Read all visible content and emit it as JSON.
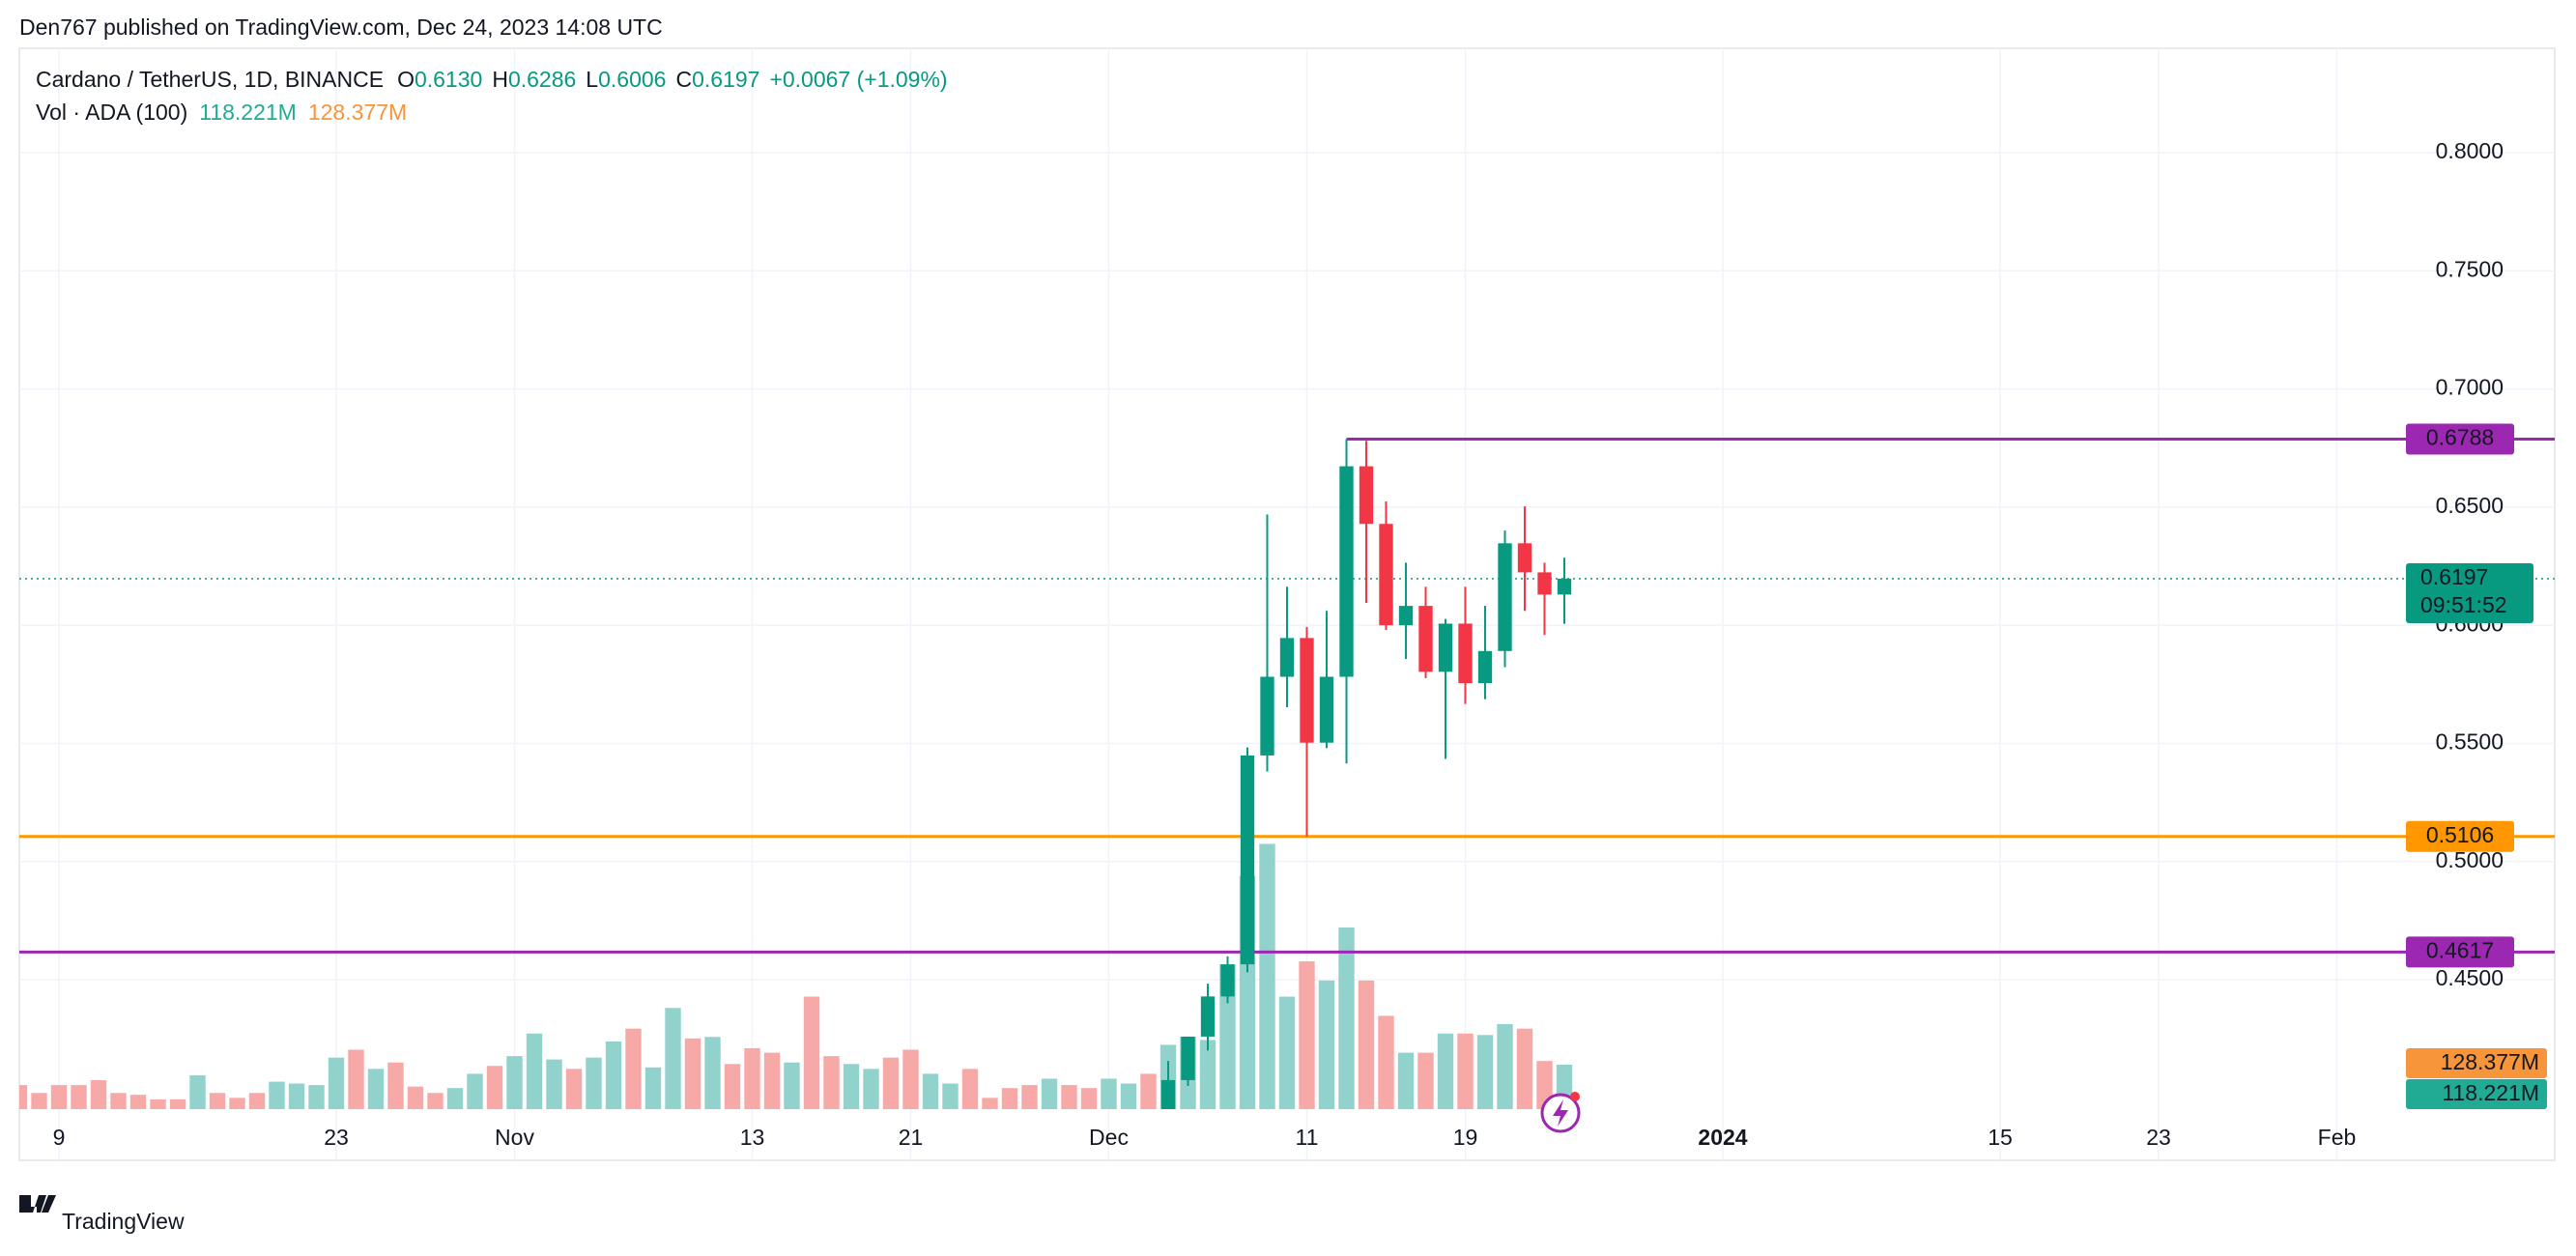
{
  "header": {
    "publisher": "Den767 published on TradingView.com, Dec 24, 2023 14:08 UTC"
  },
  "footer": {
    "brand": "TradingView"
  },
  "chart_data": {
    "type": "candlestick",
    "legend": {
      "symbol": "Cardano / TetherUS, 1D, BINANCE",
      "ohlc": [
        {
          "key": "O",
          "value": "0.6130"
        },
        {
          "key": "H",
          "value": "0.6286"
        },
        {
          "key": "L",
          "value": "0.6006"
        },
        {
          "key": "C",
          "value": "0.6197"
        }
      ],
      "change": "+0.0067 (+1.09%)"
    },
    "volume_legend": {
      "name": "Vol · ADA (100)",
      "volume": "118.221M",
      "ma": "128.377M"
    },
    "up_color": "#089981",
    "down_color": "#f23645",
    "x": [
      "2023-12-04",
      "2023-12-05",
      "2023-12-06",
      "2023-12-07",
      "2023-12-08",
      "2023-12-09",
      "2023-12-10",
      "2023-12-11",
      "2023-12-12",
      "2023-12-13",
      "2023-12-14",
      "2023-12-15",
      "2023-12-16",
      "2023-12-17",
      "2023-12-18",
      "2023-12-19",
      "2023-12-20",
      "2023-12-21",
      "2023-12-22",
      "2023-12-23",
      "2023-12-24"
    ],
    "open": [
      0.39,
      0.4075,
      0.4259,
      0.4429,
      0.4565,
      0.5449,
      0.5782,
      0.5946,
      0.5503,
      0.5782,
      0.6673,
      0.6429,
      0.6,
      0.6082,
      0.5803,
      0.6007,
      0.5755,
      0.5891,
      0.6347,
      0.6224,
      0.613
    ],
    "high": [
      0.4156,
      0.4259,
      0.4483,
      0.4599,
      0.5483,
      0.6469,
      0.6163,
      0.5993,
      0.6061,
      0.6788,
      0.678,
      0.6524,
      0.6265,
      0.6163,
      0.6027,
      0.6163,
      0.6082,
      0.6401,
      0.6503,
      0.6265,
      0.6286
    ],
    "low": [
      0.385,
      0.405,
      0.42,
      0.44,
      0.4531,
      0.5381,
      0.5653,
      0.5106,
      0.548,
      0.5415,
      0.6095,
      0.598,
      0.5857,
      0.5776,
      0.5435,
      0.5667,
      0.5687,
      0.5823,
      0.6061,
      0.5959,
      0.6006
    ],
    "close": [
      0.4075,
      0.4259,
      0.4429,
      0.4565,
      0.5449,
      0.5782,
      0.5946,
      0.5503,
      0.5782,
      0.6673,
      0.6429,
      0.6,
      0.6082,
      0.5803,
      0.6007,
      0.5755,
      0.5891,
      0.6347,
      0.6224,
      0.613,
      0.6197
    ],
    "xlim": [
      "2023-10-07",
      "2024-02-12"
    ],
    "xticks": [
      {
        "value": "2023-10-09",
        "label": "9"
      },
      {
        "value": "2023-10-23",
        "label": "23"
      },
      {
        "value": "2023-11-01",
        "label": "Nov"
      },
      {
        "value": "2023-11-13",
        "label": "13"
      },
      {
        "value": "2023-11-21",
        "label": "21"
      },
      {
        "value": "2023-12-01",
        "label": "Dec"
      },
      {
        "value": "2023-12-11",
        "label": "11"
      },
      {
        "value": "2023-12-19",
        "label": "19"
      },
      {
        "value": "2024-01-01",
        "label": "2024"
      },
      {
        "value": "2024-01-15",
        "label": "15"
      },
      {
        "value": "2024-01-23",
        "label": "23"
      },
      {
        "value": "2024-02-01",
        "label": "Feb"
      }
    ],
    "ylim": [
      0.3952,
      0.8442
    ],
    "yticks": [
      {
        "value": 0.45,
        "label": "0.4500"
      },
      {
        "value": 0.5,
        "label": "0.5000"
      },
      {
        "value": 0.55,
        "label": "0.5500"
      },
      {
        "value": 0.6,
        "label": "0.6000"
      },
      {
        "value": 0.65,
        "label": "0.6500"
      },
      {
        "value": 0.7,
        "label": "0.7000"
      },
      {
        "value": 0.75,
        "label": "0.7500"
      },
      {
        "value": 0.8,
        "label": "0.8000"
      }
    ],
    "grid": true,
    "hlines": [
      {
        "value": 0.6788,
        "color": "#9c27b0",
        "from": "2023-12-13"
      },
      {
        "value": 0.5106,
        "color": "#ff9800"
      },
      {
        "value": 0.4617,
        "color": "#9c27b0"
      }
    ],
    "price_line": {
      "value": 0.6197,
      "color": "#089981",
      "countdown": "09:51:52"
    },
    "volume": {
      "up_color": "#92d2cc",
      "down_color": "#f7a9a7",
      "ylim": [
        0,
        2820
      ],
      "x": [
        "2023-10-07",
        "2023-10-08",
        "2023-10-09",
        "2023-10-10",
        "2023-10-11",
        "2023-10-12",
        "2023-10-13",
        "2023-10-14",
        "2023-10-15",
        "2023-10-16",
        "2023-10-17",
        "2023-10-18",
        "2023-10-19",
        "2023-10-20",
        "2023-10-21",
        "2023-10-22",
        "2023-10-23",
        "2023-10-24",
        "2023-10-25",
        "2023-10-26",
        "2023-10-27",
        "2023-10-28",
        "2023-10-29",
        "2023-10-30",
        "2023-10-31",
        "2023-11-01",
        "2023-11-02",
        "2023-11-03",
        "2023-11-04",
        "2023-11-05",
        "2023-11-06",
        "2023-11-07",
        "2023-11-08",
        "2023-11-09",
        "2023-11-10",
        "2023-11-11",
        "2023-11-12",
        "2023-11-13",
        "2023-11-14",
        "2023-11-15",
        "2023-11-16",
        "2023-11-17",
        "2023-11-18",
        "2023-11-19",
        "2023-11-20",
        "2023-11-21",
        "2023-11-22",
        "2023-11-23",
        "2023-11-24",
        "2023-11-25",
        "2023-11-26",
        "2023-11-27",
        "2023-11-28",
        "2023-11-29",
        "2023-11-30",
        "2023-12-01",
        "2023-12-02",
        "2023-12-03",
        "2023-12-04",
        "2023-12-05",
        "2023-12-06",
        "2023-12-07",
        "2023-12-08",
        "2023-12-09",
        "2023-12-10",
        "2023-12-11",
        "2023-12-12",
        "2023-12-13",
        "2023-12-14",
        "2023-12-15",
        "2023-12-16",
        "2023-12-17",
        "2023-12-18",
        "2023-12-19",
        "2023-12-20",
        "2023-12-21",
        "2023-12-22",
        "2023-12-23",
        "2023-12-24"
      ],
      "values": [
        64,
        43,
        64,
        64,
        77,
        43,
        38,
        26,
        26,
        90,
        43,
        30,
        43,
        73,
        68,
        64,
        137,
        158,
        107,
        124,
        60,
        43,
        56,
        94,
        115,
        141,
        201,
        132,
        107,
        137,
        180,
        214,
        111,
        269,
        188,
        192,
        120,
        162,
        150,
        124,
        299,
        141,
        120,
        107,
        137,
        158,
        94,
        68,
        107,
        30,
        56,
        64,
        81,
        64,
        56,
        81,
        68,
        94,
        171,
        192,
        184,
        385,
        620,
        705,
        299,
        393,
        342,
        483,
        342,
        248,
        150,
        150,
        201,
        201,
        197,
        226,
        214,
        128,
        118.221
      ],
      "up": [
        false,
        false,
        false,
        false,
        false,
        false,
        false,
        false,
        false,
        true,
        false,
        false,
        false,
        true,
        true,
        true,
        true,
        false,
        true,
        false,
        false,
        false,
        true,
        true,
        false,
        true,
        true,
        true,
        false,
        true,
        true,
        false,
        true,
        true,
        false,
        true,
        false,
        false,
        false,
        true,
        false,
        false,
        true,
        true,
        false,
        false,
        true,
        true,
        false,
        false,
        false,
        false,
        true,
        false,
        false,
        true,
        true,
        false,
        true,
        true,
        true,
        true,
        true,
        true,
        true,
        false,
        true,
        true,
        false,
        false,
        true,
        false,
        true,
        false,
        true,
        true,
        false,
        false,
        true
      ]
    }
  }
}
